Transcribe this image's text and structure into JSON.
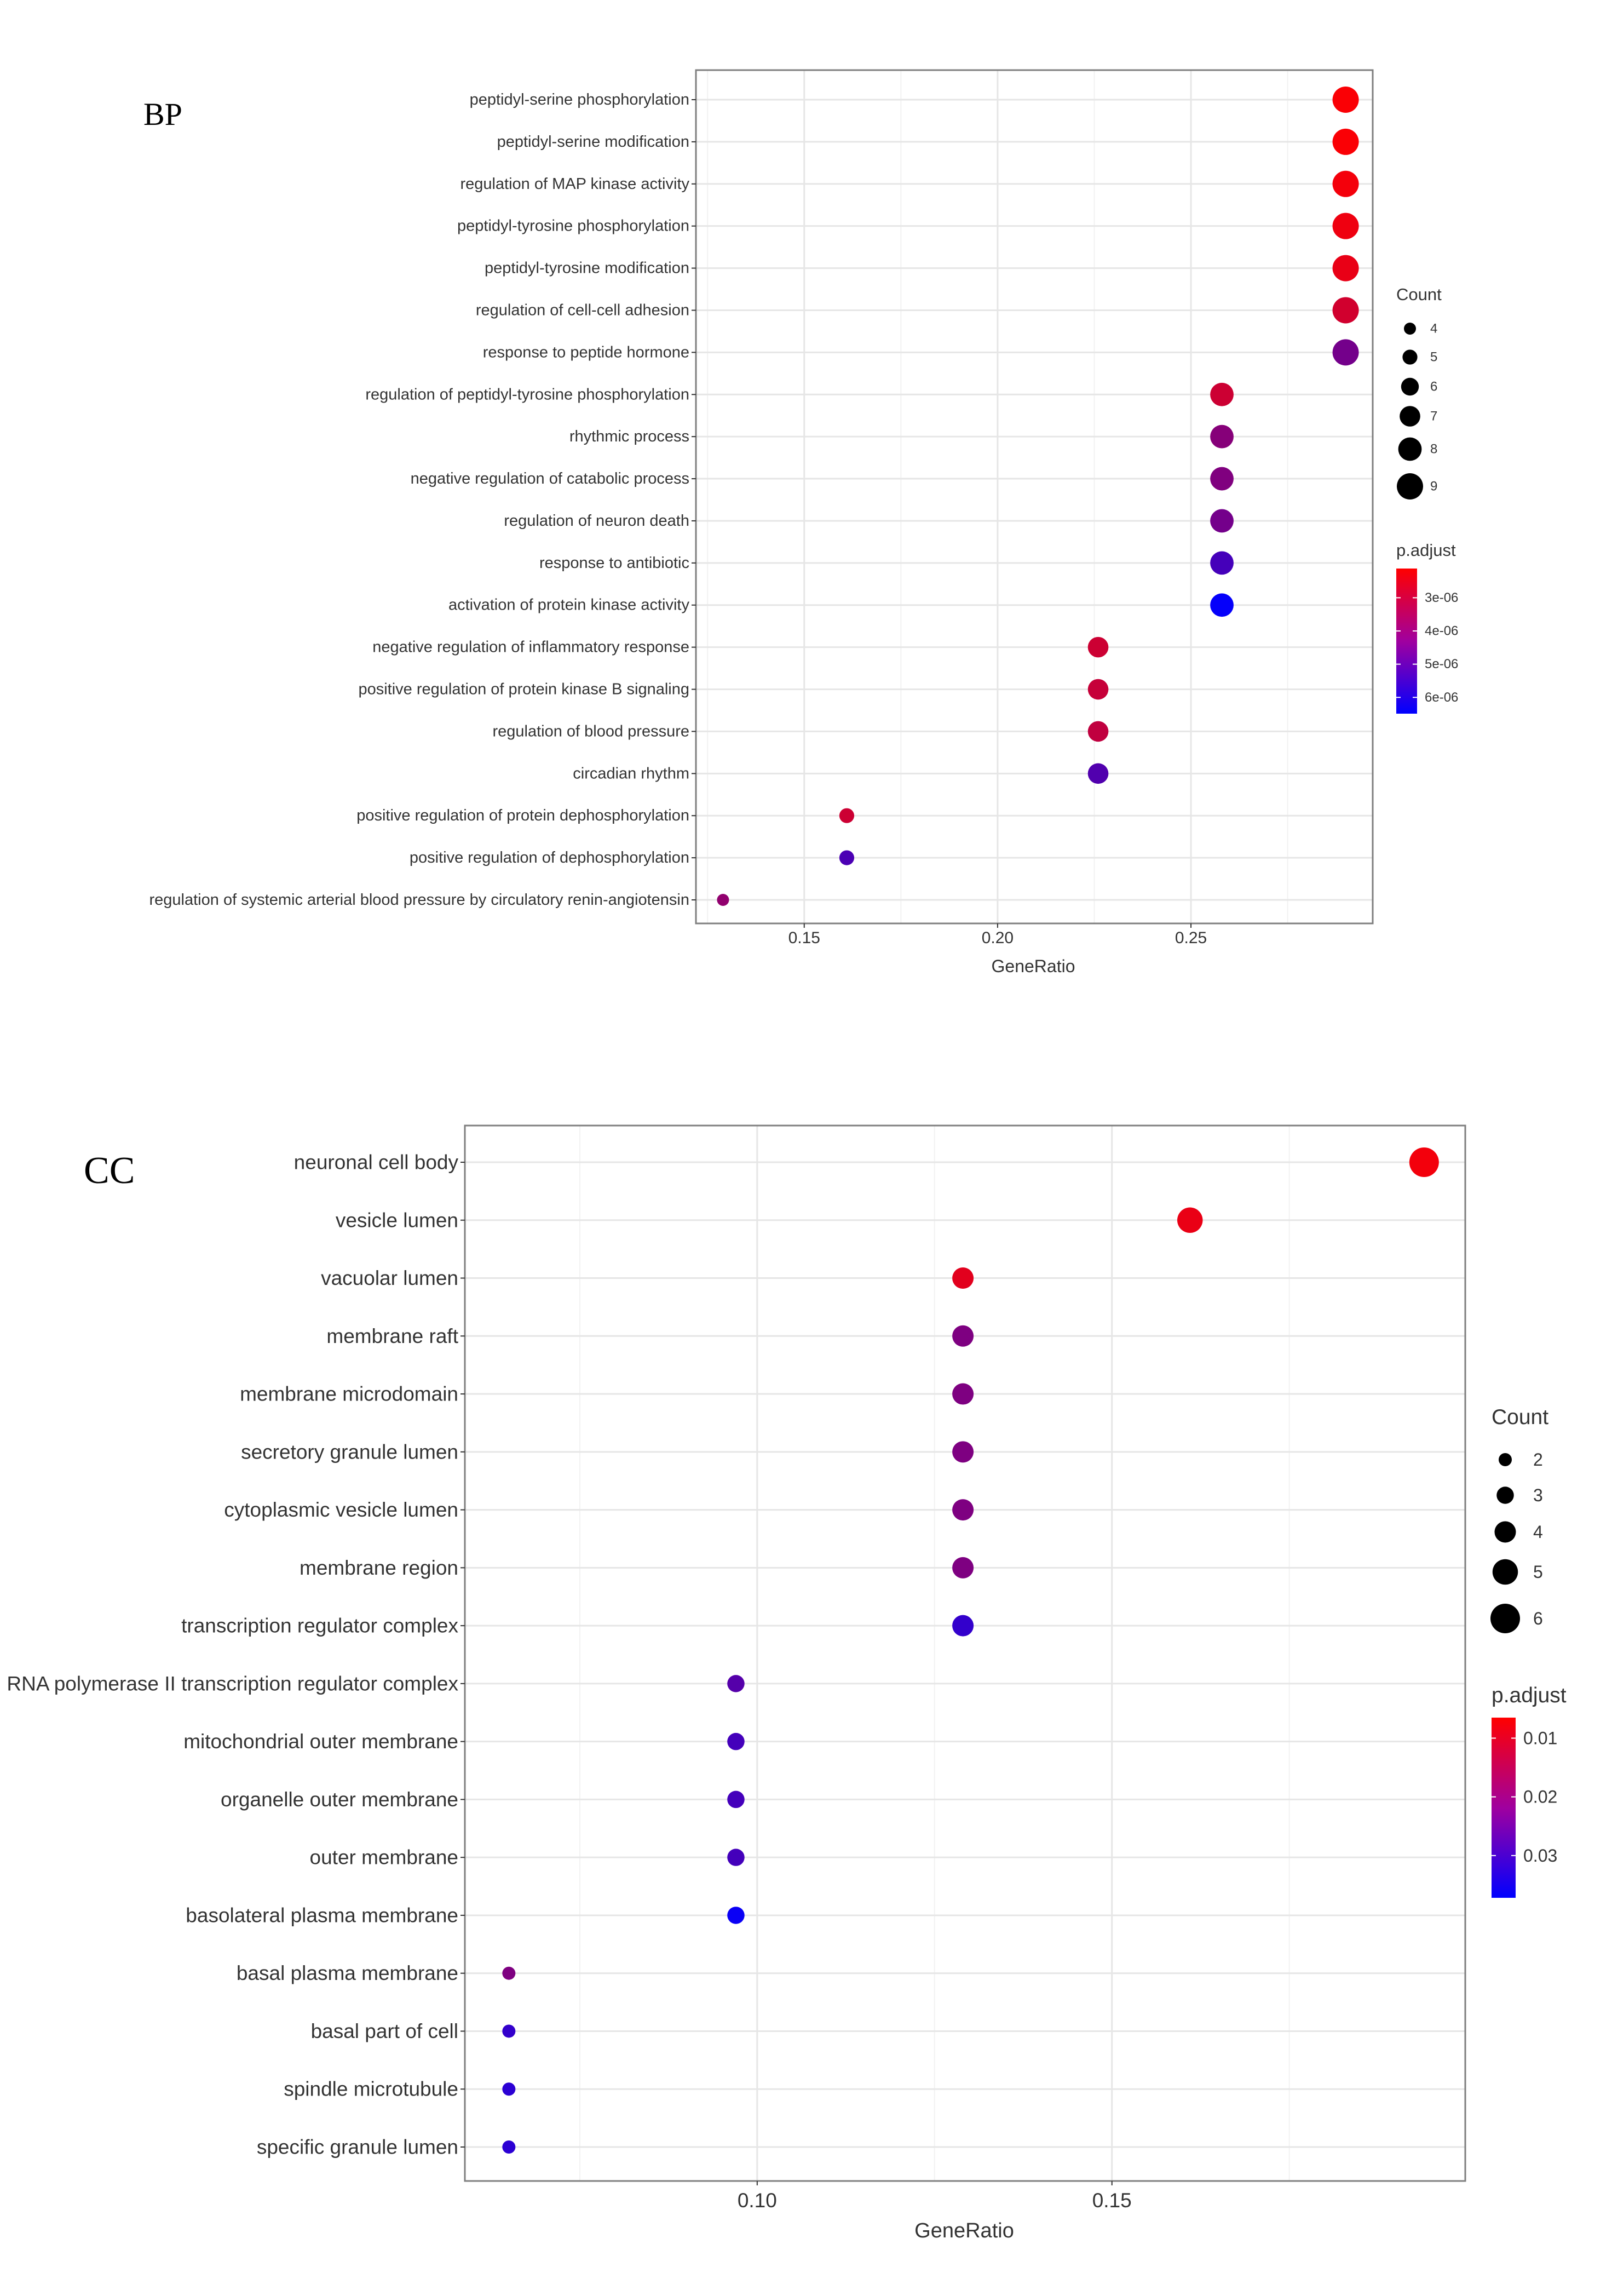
{
  "chart_data": [
    {
      "type": "scatter",
      "panel_label": "BP",
      "xlabel": "GeneRatio",
      "xticks": [
        "0.15",
        "0.20",
        "0.25"
      ],
      "xtick_values": [
        0.15,
        0.2,
        0.25
      ],
      "xlim": [
        0.122,
        0.297
      ],
      "grid": true,
      "categories": [
        "peptidyl-serine phosphorylation",
        "peptidyl-serine modification",
        "regulation of MAP kinase activity",
        "peptidyl-tyrosine phosphorylation",
        "peptidyl-tyrosine modification",
        "regulation of cell-cell adhesion",
        "response to peptide hormone",
        "regulation of peptidyl-tyrosine phosphorylation",
        "rhythmic process",
        "negative regulation of catabolic process",
        "regulation of neuron death",
        "response to antibiotic",
        "activation of protein kinase activity",
        "negative regulation of inflammatory response",
        "positive regulation of protein kinase B signaling",
        "regulation of blood pressure",
        "circadian rhythm",
        "positive regulation of protein dephosphorylation",
        "positive regulation of dephosphorylation",
        "regulation of systemic arterial blood pressure by circulatory renin-angiotensin"
      ],
      "gene_ratio": [
        0.29,
        0.29,
        0.29,
        0.29,
        0.29,
        0.29,
        0.29,
        0.258,
        0.258,
        0.258,
        0.258,
        0.258,
        0.258,
        0.226,
        0.226,
        0.226,
        0.226,
        0.161,
        0.161,
        0.129
      ],
      "count": [
        9,
        9,
        9,
        9,
        9,
        9,
        9,
        8,
        8,
        8,
        8,
        8,
        8,
        7,
        7,
        7,
        7,
        5,
        5,
        4
      ],
      "p_adjust": [
        2.2e-06,
        2.2e-06,
        2.3e-06,
        2.4e-06,
        2.5e-06,
        2.9e-06,
        4.5e-06,
        3e-06,
        4.2e-06,
        4.3e-06,
        4.5e-06,
        5.3e-06,
        6.4e-06,
        3e-06,
        3.1e-06,
        3.2e-06,
        5.1e-06,
        3e-06,
        5.2e-06,
        4e-06
      ],
      "legend": {
        "size_title": "Count",
        "size_values": [
          4,
          5,
          6,
          7,
          8,
          9
        ],
        "size_labels": [
          "4",
          "5",
          "6",
          "7",
          "8",
          "9"
        ],
        "color_title": "p.adjust",
        "color_range": [
          2.12e-06,
          6.49e-06
        ],
        "color_ticks": [
          3e-06,
          4e-06,
          5e-06,
          6e-06
        ],
        "color_tick_labels": [
          "3e-06",
          "4e-06",
          "5e-06",
          "6e-06"
        ],
        "color_low": "#FF0000",
        "color_high": "#0000FF",
        "placement": "right"
      }
    },
    {
      "type": "scatter",
      "panel_label": "CC",
      "xlabel": "GeneRatio",
      "xticks": [
        "0.10",
        "0.15"
      ],
      "xtick_values": [
        0.1,
        0.15
      ],
      "xlim": [
        0.0588,
        0.1998
      ],
      "grid": true,
      "categories": [
        "neuronal cell body",
        "vesicle lumen",
        "vacuolar lumen",
        "membrane raft",
        "membrane microdomain",
        "secretory granule lumen",
        "cytoplasmic vesicle lumen",
        "membrane region",
        "transcription regulator complex",
        "RNA polymerase II transcription regulator complex",
        "mitochondrial outer membrane",
        "organelle outer membrane",
        "outer membrane",
        "basolateral plasma membrane",
        "basal plasma membrane",
        "basal part of cell",
        "spindle microtubule",
        "specific granule lumen"
      ],
      "gene_ratio": [
        0.194,
        0.161,
        0.129,
        0.129,
        0.129,
        0.129,
        0.129,
        0.129,
        0.129,
        0.097,
        0.097,
        0.097,
        0.097,
        0.097,
        0.065,
        0.065,
        0.065,
        0.065
      ],
      "count": [
        6,
        5,
        4,
        4,
        4,
        4,
        4,
        4,
        4,
        3,
        3,
        3,
        3,
        3,
        2,
        2,
        2,
        2
      ],
      "p_adjust": [
        0.008,
        0.009,
        0.01,
        0.022,
        0.022,
        0.022,
        0.022,
        0.022,
        0.031,
        0.027,
        0.029,
        0.029,
        0.029,
        0.036,
        0.022,
        0.031,
        0.032,
        0.032
      ],
      "legend": {
        "size_title": "Count",
        "size_values": [
          2,
          3,
          4,
          5,
          6
        ],
        "size_labels": [
          "2",
          "3",
          "4",
          "5",
          "6"
        ],
        "color_title": "p.adjust",
        "color_range": [
          0.0065,
          0.0372
        ],
        "color_ticks": [
          0.01,
          0.02,
          0.03
        ],
        "color_tick_labels": [
          "0.01",
          "0.02",
          "0.03"
        ],
        "color_low": "#FF0000",
        "color_high": "#0000FF",
        "placement": "right"
      }
    }
  ]
}
